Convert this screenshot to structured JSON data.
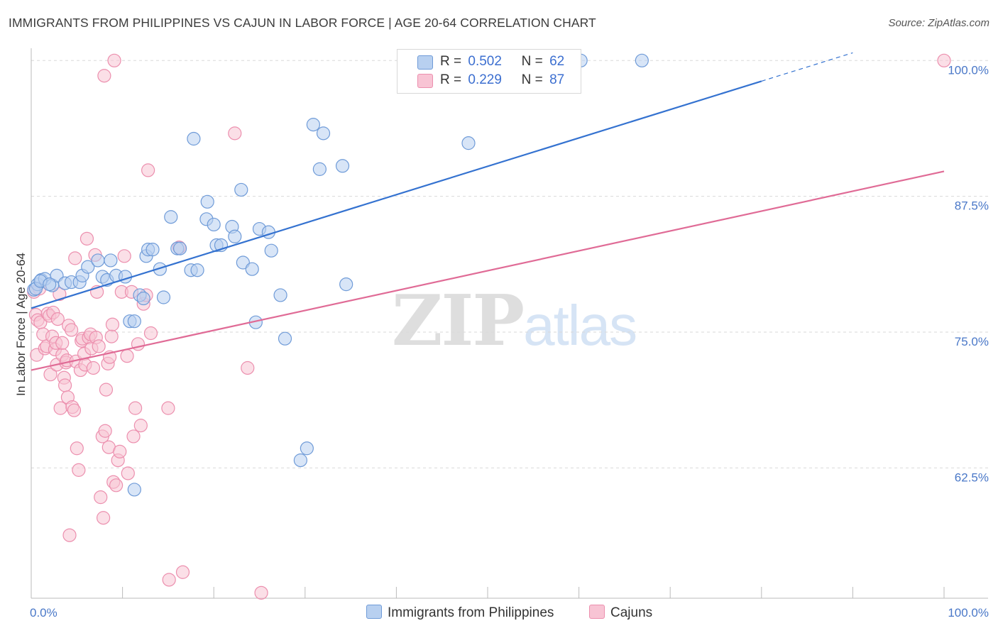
{
  "title": "IMMIGRANTS FROM PHILIPPINES VS CAJUN IN LABOR FORCE | AGE 20-64 CORRELATION CHART",
  "source": "Source: ZipAtlas.com",
  "watermark": {
    "zip": "ZIP",
    "atlas": "atlas"
  },
  "legend": {
    "r_label": "R =",
    "n_label": "N =",
    "rows": [
      {
        "r": "0.502",
        "n": "62"
      },
      {
        "r": "0.229",
        "n": "87"
      }
    ]
  },
  "colors": {
    "blue_fill": "#b8d0f0",
    "blue_stroke": "#6f9bd8",
    "blue_line": "#3472d0",
    "pink_fill": "#f8c4d4",
    "pink_stroke": "#ec8fae",
    "pink_line": "#e06b96",
    "grid": "#d9d9d9",
    "tick_text": "#4a78c8"
  },
  "chart_data": {
    "type": "scatter",
    "title": "IMMIGRANTS FROM PHILIPPINES VS CAJUN IN LABOR FORCE | AGE 20-64 CORRELATION CHART",
    "xlabel": "",
    "ylabel": "In Labor Force | Age 20-64",
    "xlim": [
      0,
      100
    ],
    "ylim": [
      50.5,
      101
    ],
    "x_tick_labels": [
      "0.0%",
      "100.0%"
    ],
    "y_ticks": [
      62.5,
      75.0,
      87.5,
      100.0
    ],
    "y_tick_labels": [
      "62.5%",
      "75.0%",
      "87.5%",
      "100.0%"
    ],
    "grid": "horizontal dashed",
    "legend_position": "top-center",
    "series": [
      {
        "name": "Immigrants from Philippines",
        "r": 0.502,
        "n": 62,
        "trend": {
          "x0": 0,
          "y0": 77.2,
          "x1": 80,
          "y1": 98.1,
          "dashed_to_x": 90
        },
        "points": [
          [
            0.3,
            78.9
          ],
          [
            0.7,
            79.4
          ],
          [
            1.1,
            79.8
          ],
          [
            1.5,
            79.9
          ],
          [
            2.3,
            79.3
          ],
          [
            2.8,
            80.2
          ],
          [
            3.7,
            79.5
          ],
          [
            4.4,
            79.6
          ],
          [
            5.3,
            79.6
          ],
          [
            5.6,
            80.2
          ],
          [
            6.2,
            81.0
          ],
          [
            7.3,
            81.6
          ],
          [
            7.8,
            80.1
          ],
          [
            8.3,
            79.8
          ],
          [
            8.7,
            81.6
          ],
          [
            9.3,
            80.2
          ],
          [
            10.3,
            80.1
          ],
          [
            10.8,
            76.0
          ],
          [
            11.3,
            60.5
          ],
          [
            11.3,
            76.0
          ],
          [
            11.9,
            78.4
          ],
          [
            12.3,
            78.1
          ],
          [
            12.6,
            82.0
          ],
          [
            12.8,
            82.6
          ],
          [
            13.3,
            82.6
          ],
          [
            14.1,
            80.8
          ],
          [
            14.5,
            78.2
          ],
          [
            15.3,
            85.6
          ],
          [
            16.0,
            82.7
          ],
          [
            16.3,
            82.7
          ],
          [
            17.5,
            80.7
          ],
          [
            18.2,
            80.7
          ],
          [
            17.8,
            92.8
          ],
          [
            19.2,
            85.4
          ],
          [
            19.3,
            87.0
          ],
          [
            20.0,
            84.9
          ],
          [
            20.3,
            83.0
          ],
          [
            20.8,
            83.0
          ],
          [
            22.0,
            84.7
          ],
          [
            22.3,
            83.8
          ],
          [
            23.0,
            88.1
          ],
          [
            23.2,
            81.4
          ],
          [
            24.2,
            80.8
          ],
          [
            24.6,
            75.9
          ],
          [
            25.0,
            84.5
          ],
          [
            26.0,
            84.2
          ],
          [
            26.3,
            82.5
          ],
          [
            27.3,
            78.4
          ],
          [
            27.8,
            74.4
          ],
          [
            29.5,
            63.2
          ],
          [
            30.2,
            64.3
          ],
          [
            30.9,
            94.1
          ],
          [
            31.6,
            90.0
          ],
          [
            32.0,
            93.3
          ],
          [
            34.1,
            90.3
          ],
          [
            34.5,
            79.4
          ],
          [
            47.9,
            92.4
          ],
          [
            60.2,
            100.0
          ],
          [
            66.9,
            100.0
          ],
          [
            0.5,
            79.0
          ],
          [
            1.0,
            79.7
          ],
          [
            2.0,
            79.4
          ]
        ]
      },
      {
        "name": "Cajuns",
        "r": 0.229,
        "n": 87,
        "trend": {
          "x0": 0,
          "y0": 71.5,
          "x1": 100,
          "y1": 89.8
        },
        "points": [
          [
            0.3,
            78.7
          ],
          [
            0.5,
            76.6
          ],
          [
            0.6,
            72.9
          ],
          [
            0.7,
            76.1
          ],
          [
            0.9,
            79.0
          ],
          [
            1.0,
            75.9
          ],
          [
            1.3,
            74.8
          ],
          [
            1.5,
            73.5
          ],
          [
            1.7,
            73.7
          ],
          [
            1.8,
            76.7
          ],
          [
            2.0,
            76.5
          ],
          [
            2.1,
            71.1
          ],
          [
            2.3,
            74.6
          ],
          [
            2.4,
            76.8
          ],
          [
            2.6,
            73.4
          ],
          [
            2.7,
            74.0
          ],
          [
            2.8,
            72.0
          ],
          [
            2.9,
            76.2
          ],
          [
            3.1,
            78.5
          ],
          [
            3.2,
            68.0
          ],
          [
            3.4,
            72.9
          ],
          [
            3.6,
            70.8
          ],
          [
            3.7,
            70.1
          ],
          [
            3.8,
            72.2
          ],
          [
            3.9,
            72.4
          ],
          [
            4.0,
            69.0
          ],
          [
            4.1,
            75.6
          ],
          [
            4.2,
            56.3
          ],
          [
            4.4,
            75.2
          ],
          [
            4.5,
            68.1
          ],
          [
            4.7,
            67.8
          ],
          [
            4.8,
            81.8
          ],
          [
            4.9,
            72.3
          ],
          [
            5.0,
            64.3
          ],
          [
            5.2,
            62.3
          ],
          [
            5.4,
            71.5
          ],
          [
            5.5,
            74.2
          ],
          [
            5.6,
            74.4
          ],
          [
            5.8,
            73.0
          ],
          [
            5.9,
            72.0
          ],
          [
            6.1,
            83.6
          ],
          [
            6.3,
            74.5
          ],
          [
            6.5,
            74.8
          ],
          [
            6.6,
            73.5
          ],
          [
            6.8,
            71.7
          ],
          [
            7.0,
            82.1
          ],
          [
            7.1,
            74.5
          ],
          [
            7.2,
            78.7
          ],
          [
            7.4,
            73.7
          ],
          [
            7.6,
            59.8
          ],
          [
            7.8,
            65.4
          ],
          [
            7.9,
            57.9
          ],
          [
            8.0,
            98.6
          ],
          [
            8.1,
            65.9
          ],
          [
            8.2,
            69.7
          ],
          [
            8.4,
            72.1
          ],
          [
            8.5,
            64.4
          ],
          [
            8.6,
            72.7
          ],
          [
            8.8,
            74.6
          ],
          [
            8.9,
            75.7
          ],
          [
            9.0,
            61.2
          ],
          [
            9.1,
            100.0
          ],
          [
            9.3,
            60.9
          ],
          [
            9.5,
            63.2
          ],
          [
            9.7,
            64.0
          ],
          [
            9.9,
            78.7
          ],
          [
            10.2,
            82.0
          ],
          [
            10.5,
            72.8
          ],
          [
            10.6,
            62.0
          ],
          [
            11.0,
            78.7
          ],
          [
            11.2,
            65.4
          ],
          [
            11.4,
            68.0
          ],
          [
            11.7,
            73.9
          ],
          [
            12.0,
            66.4
          ],
          [
            12.3,
            77.6
          ],
          [
            12.6,
            78.4
          ],
          [
            12.8,
            89.9
          ],
          [
            13.1,
            74.9
          ],
          [
            15.0,
            68.0
          ],
          [
            15.1,
            52.2
          ],
          [
            16.2,
            82.8
          ],
          [
            16.6,
            52.9
          ],
          [
            22.3,
            93.3
          ],
          [
            23.7,
            71.7
          ],
          [
            25.2,
            51.0
          ],
          [
            100.0,
            100.0
          ],
          [
            3.4,
            74.0
          ]
        ]
      }
    ]
  },
  "bottom_legend": [
    {
      "label": "Immigrants from Philippines"
    },
    {
      "label": "Cajuns"
    }
  ]
}
